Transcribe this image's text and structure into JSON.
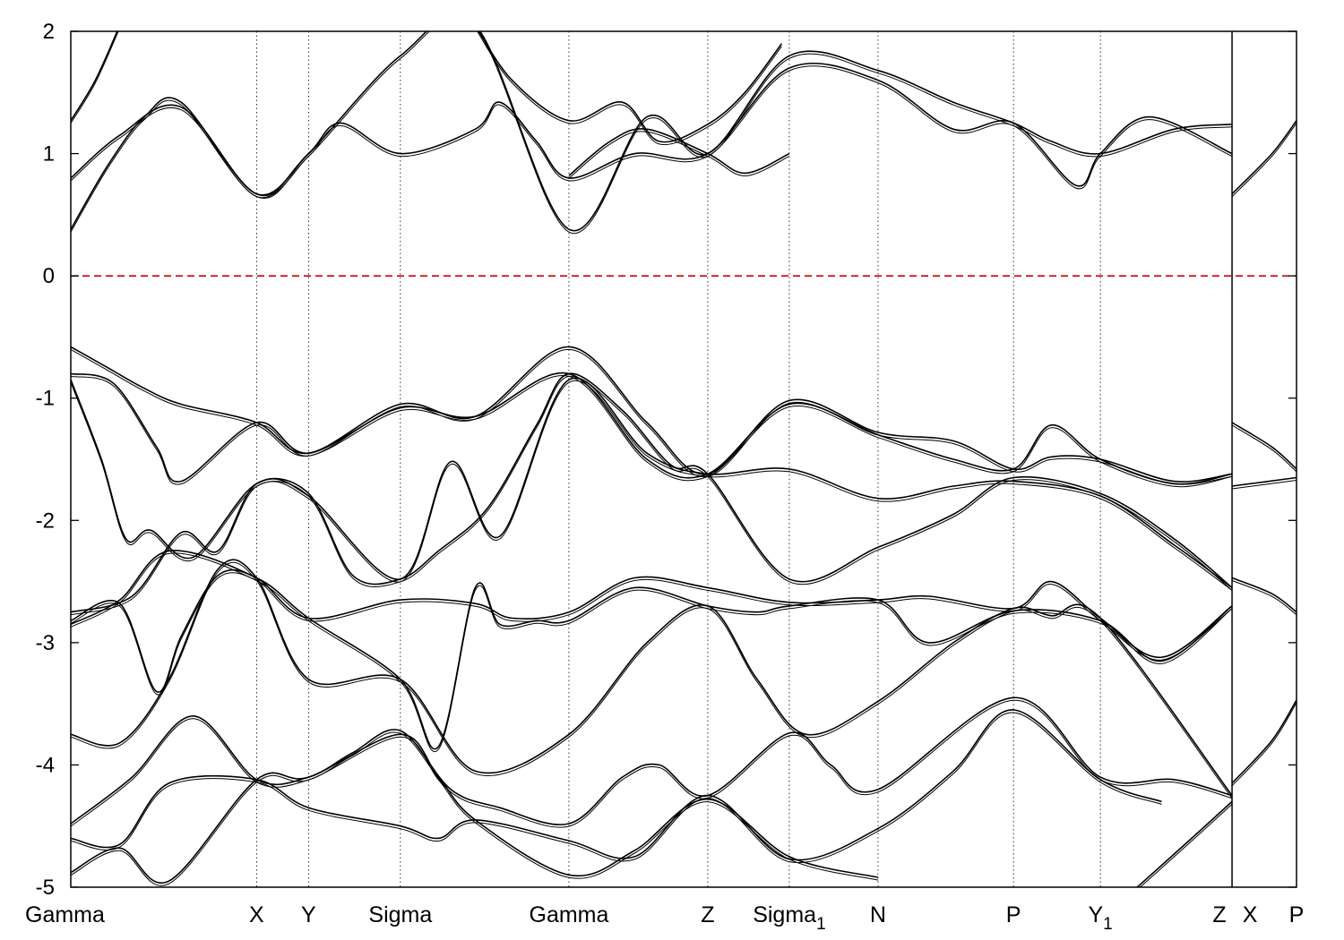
{
  "chart_data": {
    "type": "line",
    "title": "",
    "xlabel": "",
    "ylabel": "",
    "ylim": [
      -5,
      2
    ],
    "yticks": [
      2,
      1,
      0,
      -1,
      -2,
      -3,
      -4,
      -5
    ],
    "ytick_labels": [
      "2",
      "1",
      "0",
      "-1",
      "-2",
      "-3",
      "-4",
      "-5"
    ],
    "xlim": [
      0,
      1
    ],
    "kpoints": [
      {
        "name": "Gamma",
        "sub": "",
        "x": 0.0
      },
      {
        "name": "X",
        "sub": "",
        "x": 0.1516
      },
      {
        "name": "Y",
        "sub": "",
        "x": 0.194
      },
      {
        "name": "Sigma",
        "sub": "",
        "x": 0.2689
      },
      {
        "name": "Gamma",
        "sub": "",
        "x": 0.4064
      },
      {
        "name": "Z",
        "sub": "",
        "x": 0.5197
      },
      {
        "name": "Sigma",
        "sub": "1",
        "x": 0.5862
      },
      {
        "name": "N",
        "sub": "",
        "x": 0.6586
      },
      {
        "name": "P",
        "sub": "",
        "x": 0.7691
      },
      {
        "name": "Y",
        "sub": "1",
        "x": 0.84
      },
      {
        "name": "Z",
        "sub": "",
        "x": 0.9474
      },
      {
        "name": "X",
        "sub": "",
        "x": 0.9474
      },
      {
        "name": "P",
        "sub": "",
        "x": 1.0
      }
    ],
    "fermi_level": {
      "y": 0,
      "color": "#d00000",
      "style": "dashed"
    },
    "series": [
      {
        "x": [
          0.0,
          0.03,
          0.06,
          0.09,
          0.1516,
          0.194,
          0.2689,
          0.33,
          0.4064,
          0.47,
          0.5197,
          0.5862,
          0.6586,
          0.72,
          0.7691,
          0.8,
          0.84,
          0.9,
          0.9474
        ],
        "y": [
          -0.58,
          -0.75,
          -0.92,
          -1.05,
          -1.2,
          -1.45,
          -1.05,
          -1.15,
          -0.58,
          -1.2,
          -1.62,
          -1.02,
          -1.28,
          -1.35,
          -1.58,
          -1.48,
          -1.5,
          -1.68,
          -1.62
        ]
      },
      {
        "x": [
          0.0,
          0.035,
          0.07,
          0.09,
          0.1516,
          0.194,
          0.2689,
          0.33,
          0.4064,
          0.47,
          0.5197,
          0.5862,
          0.6586,
          0.72,
          0.7691,
          0.8,
          0.84,
          0.9,
          0.9474
        ],
        "y": [
          -0.8,
          -0.88,
          -1.4,
          -1.68,
          -1.2,
          -1.45,
          -1.08,
          -1.15,
          -0.8,
          -1.5,
          -1.62,
          -1.05,
          -1.3,
          -1.5,
          -1.58,
          -1.22,
          -1.5,
          -1.7,
          -1.62
        ]
      },
      {
        "x": [
          0.0,
          0.025,
          0.045,
          0.065,
          0.1,
          0.1516,
          0.194,
          0.2689,
          0.31,
          0.35,
          0.4064,
          0.47,
          0.5197,
          0.5862,
          0.6586,
          0.72,
          0.7691,
          0.84,
          0.9,
          0.9474
        ],
        "y": [
          -0.85,
          -1.5,
          -2.15,
          -2.08,
          -2.3,
          -1.7,
          -1.8,
          -2.48,
          -1.52,
          -2.13,
          -0.85,
          -1.45,
          -1.62,
          -1.58,
          -1.82,
          -1.72,
          -1.68,
          -1.8,
          -2.2,
          -2.55
        ]
      },
      {
        "x": [
          0.0,
          0.05,
          0.09,
          0.12,
          0.1516,
          0.194,
          0.23,
          0.2689,
          0.3,
          0.34,
          0.38,
          0.4064,
          0.45,
          0.49,
          0.5197,
          0.5862,
          0.6586,
          0.72,
          0.7691,
          0.84,
          0.9,
          0.9474
        ],
        "y": [
          -2.75,
          -2.62,
          -2.1,
          -2.25,
          -1.7,
          -1.78,
          -2.45,
          -2.48,
          -2.25,
          -1.9,
          -1.22,
          -0.8,
          -1.1,
          -1.55,
          -1.62,
          -2.48,
          -2.22,
          -1.95,
          -1.65,
          -1.78,
          -2.15,
          -2.55
        ]
      },
      {
        "x": [
          0.0,
          0.04,
          0.07,
          0.09,
          0.12,
          0.1516,
          0.194,
          0.2689,
          0.33,
          0.36,
          0.4064,
          0.46,
          0.5197,
          0.5862,
          0.6586,
          0.7,
          0.7691,
          0.8,
          0.84,
          0.89,
          0.9474
        ],
        "y": [
          -2.82,
          -2.68,
          -3.4,
          -2.95,
          -2.45,
          -2.47,
          -2.8,
          -2.65,
          -2.68,
          -2.8,
          -2.75,
          -2.47,
          -2.55,
          -2.67,
          -2.65,
          -2.62,
          -2.72,
          -2.5,
          -2.8,
          -3.12,
          -2.7
        ]
      },
      {
        "x": [
          0.0,
          0.04,
          0.08,
          0.1516,
          0.194,
          0.2689,
          0.3,
          0.33,
          0.35,
          0.38,
          0.4064,
          0.46,
          0.5197,
          0.56,
          0.5862,
          0.6586,
          0.7,
          0.7691,
          0.84,
          0.89,
          0.9474
        ],
        "y": [
          -2.85,
          -2.65,
          -2.25,
          -2.47,
          -2.8,
          -3.3,
          -3.85,
          -2.55,
          -2.85,
          -2.82,
          -2.82,
          -2.55,
          -2.7,
          -2.75,
          -2.7,
          -2.65,
          -3.0,
          -2.74,
          -2.82,
          -3.15,
          -2.7
        ]
      },
      {
        "x": [
          0.0,
          0.04,
          0.08,
          0.12,
          0.1516,
          0.194,
          0.2689,
          0.33,
          0.4064,
          0.47,
          0.5197,
          0.56,
          0.6,
          0.6586,
          0.72,
          0.7691,
          0.8,
          0.84,
          0.9474
        ],
        "y": [
          -3.75,
          -3.82,
          -3.3,
          -2.4,
          -2.47,
          -3.3,
          -3.3,
          -4.05,
          -3.75,
          -3.0,
          -2.7,
          -3.3,
          -3.75,
          -3.48,
          -3.0,
          -2.72,
          -2.78,
          -2.8,
          -4.25
        ]
      },
      {
        "x": [
          0.0,
          0.05,
          0.1,
          0.1516,
          0.194,
          0.23,
          0.2689,
          0.31,
          0.35,
          0.4064,
          0.45,
          0.48,
          0.5197,
          0.5862,
          0.62,
          0.6586,
          0.7691,
          0.84,
          0.9,
          0.9474
        ],
        "y": [
          -4.48,
          -4.1,
          -3.6,
          -4.12,
          -4.1,
          -3.9,
          -3.72,
          -4.2,
          -4.35,
          -4.48,
          -4.1,
          -4.0,
          -4.25,
          -3.74,
          -4.0,
          -4.2,
          -3.45,
          -4.1,
          -4.12,
          -4.25
        ]
      },
      {
        "x": [
          0.0,
          0.04,
          0.08,
          0.1516,
          0.194,
          0.2689,
          0.3,
          0.33,
          0.4064,
          0.46,
          0.5197,
          0.5862,
          0.6586,
          0.72,
          0.7691,
          0.84,
          0.89
        ],
        "y": [
          -4.6,
          -4.65,
          -4.15,
          -4.12,
          -4.35,
          -4.5,
          -4.6,
          -4.45,
          -4.62,
          -4.75,
          -4.25,
          -4.77,
          -4.52,
          -4.05,
          -3.55,
          -4.12,
          -4.3
        ]
      },
      {
        "x": [
          0.0,
          0.04,
          0.08,
          0.1516,
          0.194,
          0.2689,
          0.3,
          0.33,
          0.4064,
          0.46,
          0.5197,
          0.5862,
          0.6586
        ],
        "y": [
          -4.88,
          -4.68,
          -4.95,
          -4.12,
          -4.1,
          -3.75,
          -4.1,
          -4.45,
          -4.9,
          -4.7,
          -4.28,
          -4.75,
          -4.92
        ]
      },
      {
        "x": [
          0.0,
          0.03,
          0.06,
          0.09,
          0.1516,
          0.194,
          0.2689,
          0.33,
          0.4064,
          0.47,
          0.5197,
          0.5862,
          0.6586,
          0.72,
          0.7691,
          0.8,
          0.84,
          0.9,
          0.9474
        ],
        "y": [
          0.38,
          0.9,
          1.3,
          1.42,
          0.67,
          1.0,
          1.8,
          2.05,
          0.38,
          1.3,
          1.0,
          1.8,
          1.68,
          1.42,
          1.25,
          1.1,
          1.0,
          1.2,
          1.24
        ]
      },
      {
        "x": [
          0.0,
          0.04,
          0.09,
          0.1516,
          0.194,
          0.22,
          0.2689,
          0.33,
          0.35,
          0.38,
          0.4064,
          0.46,
          0.5197,
          0.5862,
          0.6586,
          0.72,
          0.7691,
          0.82,
          0.84,
          0.88,
          0.9474
        ],
        "y": [
          0.8,
          1.15,
          1.38,
          0.67,
          1.0,
          1.25,
          1.0,
          1.2,
          1.42,
          1.1,
          0.8,
          1.0,
          1.0,
          1.7,
          1.6,
          1.2,
          1.25,
          0.74,
          1.0,
          1.3,
          1.0
        ]
      },
      {
        "x": [
          0.0,
          0.02,
          0.04
        ],
        "y": [
          1.27,
          1.6,
          2.05
        ]
      },
      {
        "x": [
          0.33,
          0.36,
          0.4064,
          0.45,
          0.48,
          0.5197,
          0.55,
          0.58
        ],
        "y": [
          2.05,
          1.6,
          1.27,
          1.42,
          1.1,
          1.24,
          1.5,
          1.9
        ]
      },
      {
        "x": [
          0.4064,
          0.44,
          0.47,
          0.5197,
          0.55,
          0.5862
        ],
        "y": [
          0.82,
          1.1,
          1.2,
          1.0,
          0.84,
          1.0
        ]
      },
      {
        "x": [
          0.9474,
          0.98,
          1.0
        ],
        "y": [
          0.67,
          1.0,
          1.27
        ]
      },
      {
        "x": [
          0.9474,
          0.98,
          1.0
        ],
        "y": [
          -1.2,
          -1.4,
          -1.58
        ]
      },
      {
        "x": [
          0.9474,
          1.0
        ],
        "y": [
          -1.72,
          -1.65
        ]
      },
      {
        "x": [
          0.9474,
          0.98,
          1.0
        ],
        "y": [
          -2.47,
          -2.6,
          -2.75
        ]
      },
      {
        "x": [
          0.9474,
          0.98,
          1.0
        ],
        "y": [
          -4.15,
          -3.8,
          -3.47
        ]
      },
      {
        "x": [
          0.87,
          0.92,
          0.9474
        ],
        "y": [
          -5.0,
          -4.55,
          -4.3
        ]
      }
    ]
  }
}
